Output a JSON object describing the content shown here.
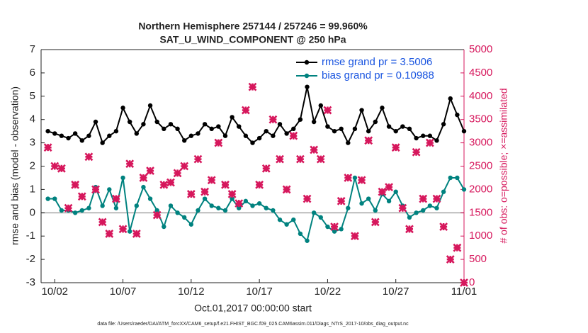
{
  "chart_data": {
    "type": "line",
    "title": "Northern Hemisphere 257144 / 257246 = 99.960%",
    "subtitle": "SAT_U_WIND_COMPONENT @ 250 hPa",
    "x_label": "Oct.01,2017 00:00:00 start",
    "y_label": "rmse and bias (model - observation)",
    "y2_label": "# of obs: o=possible; ×=assimilated",
    "footnote": "data file: /Users/raeder/DAI/ATM_forcXX/CAM6_setup/f.e21.FHIST_BGC.f09_025.CAM6assim.011/Diags_NTrS_2017-10/obs_diag_output.nc",
    "xlim": [
      0,
      31
    ],
    "xticks": [
      {
        "value": 1,
        "label": "10/02"
      },
      {
        "value": 6,
        "label": "10/07"
      },
      {
        "value": 11,
        "label": "10/12"
      },
      {
        "value": 16,
        "label": "10/17"
      },
      {
        "value": 21,
        "label": "10/22"
      },
      {
        "value": 26,
        "label": "10/27"
      },
      {
        "value": 31,
        "label": "11/01"
      }
    ],
    "ylim": [
      -3,
      7
    ],
    "yticks": [
      -3,
      -2,
      -1,
      0,
      1,
      2,
      3,
      4,
      5,
      6,
      7
    ],
    "y2lim": [
      0,
      5000
    ],
    "y2ticks": [
      0,
      500,
      1000,
      1500,
      2000,
      2500,
      3000,
      3500,
      4000,
      4500,
      5000
    ],
    "y2_color": "#d6175c",
    "reference_line": 0,
    "legend_position": "upper right",
    "legend_text_color": "#1a55e0",
    "x": [
      0.5,
      1,
      1.5,
      2,
      2.5,
      3,
      3.5,
      4,
      4.5,
      5,
      5.5,
      6,
      6.5,
      7,
      7.5,
      8,
      8.5,
      9,
      9.5,
      10,
      10.5,
      11,
      11.5,
      12,
      12.5,
      13,
      13.5,
      14,
      14.5,
      15,
      15.5,
      16,
      16.5,
      17,
      17.5,
      18,
      18.5,
      19,
      19.5,
      20,
      20.5,
      21,
      21.5,
      22,
      22.5,
      23,
      23.5,
      24,
      24.5,
      25,
      25.5,
      26,
      26.5,
      27,
      27.5,
      28,
      28.5,
      29,
      29.5,
      30,
      30.5,
      31
    ],
    "series": [
      {
        "name": "rmse grand pr = 3.5006",
        "color": "#000000",
        "values": [
          3.5,
          3.4,
          3.3,
          3.2,
          3.4,
          3.1,
          3.3,
          3.9,
          3.0,
          3.3,
          3.5,
          4.5,
          3.9,
          3.4,
          3.8,
          4.6,
          3.9,
          3.6,
          3.8,
          3.6,
          3.1,
          3.3,
          3.4,
          3.8,
          3.6,
          3.7,
          3.3,
          4.1,
          3.7,
          3.3,
          3.0,
          3.2,
          3.5,
          3.3,
          3.8,
          3.4,
          3.6,
          4.0,
          5.4,
          3.9,
          4.6,
          3.7,
          3.5,
          3.6,
          3.0,
          3.6,
          4.4,
          3.5,
          3.9,
          4.5,
          3.7,
          3.5,
          3.7,
          3.6,
          3.2,
          3.3,
          3.3,
          3.1,
          3.8,
          4.9,
          4.2,
          3.5
        ]
      },
      {
        "name": "bias grand pr = 0.10988",
        "color": "#00827f",
        "values": [
          0.6,
          0.6,
          0.1,
          0.1,
          0,
          0.1,
          0.2,
          1.1,
          0.3,
          1.0,
          0.2,
          1.5,
          -0.8,
          0.3,
          1.1,
          0.6,
          0.1,
          -0.6,
          0.3,
          0,
          -0.2,
          -0.5,
          0.1,
          0.6,
          0.3,
          0.2,
          0.1,
          0.6,
          0.2,
          0.5,
          0.3,
          0.4,
          0.2,
          0.1,
          -0.3,
          -0.5,
          -0.3,
          -0.9,
          -1.2,
          0,
          -0.2,
          -0.6,
          -0.8,
          -0.7,
          0.2,
          1.5,
          0.4,
          0.6,
          0.1,
          0.8,
          0.5,
          0.9,
          0.3,
          -0.2,
          0,
          0.1,
          0.3,
          0.2,
          0.9,
          1.5,
          1.5,
          1.0
        ]
      },
      {
        "color": "#d6175c",
        "axis": "y2",
        "marker_only": true,
        "values": [
          2900,
          2500,
          2450,
          1600,
          2100,
          1850,
          2700,
          2000,
          1300,
          1050,
          1800,
          1150,
          2550,
          1050,
          2250,
          2400,
          1450,
          2100,
          2150,
          2350,
          2500,
          1900,
          2650,
          1950,
          2200,
          3000,
          2100,
          1900,
          1700,
          3700,
          4200,
          2100,
          2450,
          3500,
          2650,
          2000,
          3150,
          2650,
          1800,
          2850,
          2650,
          3700,
          1200,
          1750,
          2250,
          1000,
          2200,
          3050,
          1300,
          1950,
          2050,
          2900,
          1600,
          1150,
          2800,
          1800,
          3000,
          1800,
          1200,
          500,
          750,
          0
        ]
      }
    ]
  }
}
